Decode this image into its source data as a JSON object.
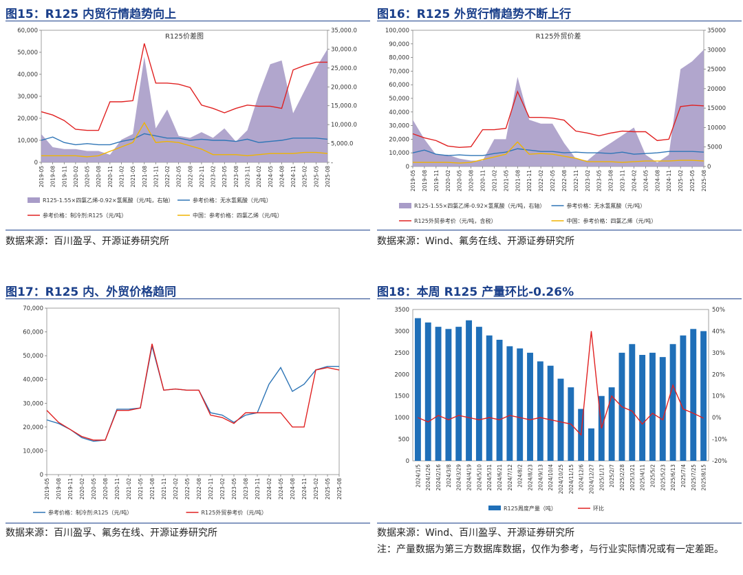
{
  "panels": [
    {
      "title": "图15：R125 内贸行情趋势向上",
      "source": "数据来源：百川盈孚、开源证券研究所",
      "chart_data": {
        "type": "area",
        "title": "R125价差图",
        "x": [
          "2019-05",
          "2019-08",
          "2019-11",
          "2020-02",
          "2020-05",
          "2020-08",
          "2020-11",
          "2021-02",
          "2021-05",
          "2021-08",
          "2021-11",
          "2022-02",
          "2022-05",
          "2022-08",
          "2022-11",
          "2023-02",
          "2023-05",
          "2023-08",
          "2023-11",
          "2024-02",
          "2024-05",
          "2024-08",
          "2024-11",
          "2025-02",
          "2025-05",
          "2025-08"
        ],
        "ylim_left": [
          0,
          60000
        ],
        "ylim_right": [
          0,
          35000
        ],
        "yticks_left": [
          "0",
          "10,000",
          "20,000",
          "30,000",
          "40,000",
          "50,000",
          "60,000"
        ],
        "yticks_right": [
          "-",
          "5,000.0",
          "10,000.0",
          "15,000.0",
          "20,000.0",
          "25,000.0",
          "30,000.0",
          "35,000.0"
        ],
        "series": [
          {
            "name": "R125-1.55×四氯乙烯-0.92×氢氟酸（元/吨，右轴）",
            "type": "area",
            "color": "#a89cc8",
            "axis": "right",
            "values": [
              7500,
              4000,
              3500,
              3500,
              3000,
              3000,
              2000,
              6000,
              7500,
              28000,
              9000,
              14000,
              7000,
              6500,
              8000,
              6500,
              9000,
              5500,
              8500,
              18000,
              26000,
              27000,
              13000,
              19000,
              25000,
              30000
            ]
          },
          {
            "name": "参考价格：无水氢氟酸（元/吨）",
            "type": "line",
            "color": "#2e75b6",
            "axis": "left",
            "values": [
              10000,
              11500,
              9000,
              8000,
              8500,
              8000,
              8000,
              9500,
              10500,
              13000,
              12000,
              11000,
              11000,
              10000,
              10500,
              10000,
              10000,
              9500,
              10500,
              9000,
              9500,
              10000,
              11000,
              11000,
              11000,
              10500
            ]
          },
          {
            "name": "参考价格：制冷剂:R125（元/吨）",
            "type": "line",
            "color": "#e02020",
            "axis": "left",
            "values": [
              23000,
              21500,
              19000,
              15000,
              14500,
              14500,
              27500,
              27500,
              28000,
              54000,
              36000,
              36000,
              35500,
              34000,
              26000,
              24500,
              22500,
              24500,
              26000,
              25500,
              25500,
              24500,
              42000,
              44000,
              45500,
              45500
            ]
          },
          {
            "name": "中国：参考价格：四氯乙烯（元/吨）",
            "type": "line",
            "color": "#f0b400",
            "axis": "left",
            "values": [
              3000,
              3000,
              3000,
              3000,
              2500,
              3000,
              5000,
              7000,
              9000,
              18000,
              9000,
              9500,
              9000,
              7500,
              6000,
              3500,
              3500,
              3500,
              3000,
              3500,
              4000,
              4000,
              4000,
              4500,
              4500,
              4000
            ]
          }
        ]
      }
    },
    {
      "title": "图16：R125 外贸行情趋势不断上行",
      "source": "数据来源：Wind、氟务在线、开源证券研究所",
      "chart_data": {
        "type": "area",
        "title": "R125外贸价差",
        "x": [
          "2019-05",
          "2019-08",
          "2019-11",
          "2020-02",
          "2020-05",
          "2020-08",
          "2020-11",
          "2021-02",
          "2021-05",
          "2021-08",
          "2021-11",
          "2022-02",
          "2022-05",
          "2022-08",
          "2022-11",
          "2023-02",
          "2023-05",
          "2023-08",
          "2023-11",
          "2024-02",
          "2024-05",
          "2024-08",
          "2024-11",
          "2025-02",
          "2025-05",
          "2025-08"
        ],
        "ylim_left": [
          0,
          100000
        ],
        "ylim_right": [
          0,
          35000
        ],
        "yticks_left": [
          "0",
          "10,000",
          "20,000",
          "30,000",
          "40,000",
          "50,000",
          "60,000",
          "70,000",
          "80,000",
          "90,000",
          "100,000"
        ],
        "yticks_right": [
          "0",
          "5000",
          "10000",
          "15000",
          "20000",
          "25000",
          "30000",
          "35000"
        ],
        "series": [
          {
            "name": "R125-1.55×四氯乙烯-0.92×氢氟酸（元/吨，右轴）",
            "type": "area",
            "color": "#a89cc8",
            "axis": "right",
            "values": [
              12000,
              7000,
              3000,
              3000,
              2000,
              1500,
              1500,
              7000,
              7000,
              23000,
              12000,
              11000,
              11000,
              6000,
              2000,
              1500,
              4000,
              6000,
              8000,
              10000,
              3000,
              1000,
              3000,
              25000,
              27000,
              30000
            ]
          },
          {
            "name": "参考价格：无水氢氟酸（元/吨）",
            "type": "line",
            "color": "#2e75b6",
            "axis": "left",
            "values": [
              10000,
              12000,
              9000,
              8000,
              8500,
              8000,
              8000,
              9500,
              10500,
              13000,
              12000,
              11000,
              11000,
              10000,
              10500,
              10000,
              10000,
              9500,
              10500,
              9000,
              9500,
              10000,
              11000,
              11000,
              11000,
              10500
            ]
          },
          {
            "name": "R125外贸参考价（元/吨，含税）",
            "type": "line",
            "color": "#e02020",
            "axis": "left",
            "values": [
              24000,
              21000,
              19000,
              15000,
              14000,
              14500,
              27000,
              27000,
              28000,
              55000,
              36000,
              36000,
              35500,
              34000,
              26000,
              24500,
              22500,
              24500,
              26000,
              25500,
              25500,
              19000,
              20000,
              44000,
              45000,
              44500
            ]
          },
          {
            "name": "中国：参考价格：四氯乙烯（元/吨）",
            "type": "line",
            "color": "#f0b400",
            "axis": "left",
            "values": [
              3000,
              3000,
              3000,
              3000,
              2500,
              3000,
              5000,
              7000,
              9000,
              18000,
              9000,
              9500,
              9000,
              7500,
              6000,
              3500,
              3500,
              3500,
              3000,
              3500,
              4000,
              4000,
              4000,
              4500,
              4500,
              4000
            ]
          }
        ]
      }
    },
    {
      "title": "图17：R125 内、外贸价格趋同",
      "source": "数据来源：百川盈孚、氟务在线、开源证券研究所",
      "chart_data": {
        "type": "line",
        "x": [
          "2019-05",
          "2019-08",
          "2019-11",
          "2020-02",
          "2020-05",
          "2020-08",
          "2020-11",
          "2021-02",
          "2021-05",
          "2021-08",
          "2021-11",
          "2022-02",
          "2022-05",
          "2022-08",
          "2022-11",
          "2023-02",
          "2023-05",
          "2023-08",
          "2023-11",
          "2024-02",
          "2024-05",
          "2024-08",
          "2024-11",
          "2025-02",
          "2025-05",
          "2025-08"
        ],
        "ylim": [
          0,
          70000
        ],
        "yticks": [
          "0",
          "10,000",
          "20,000",
          "30,000",
          "40,000",
          "50,000",
          "60,000",
          "70,000"
        ],
        "series": [
          {
            "name": "参考价格：制冷剂:R125（元/吨）",
            "color": "#2e75b6",
            "values": [
              23000,
              21500,
              19000,
              15500,
              14000,
              14500,
              27500,
              27500,
              28000,
              54000,
              35500,
              36000,
              35500,
              35500,
              26000,
              25000,
              22000,
              25000,
              26000,
              38000,
              45000,
              35000,
              38000,
              44000,
              45500,
              45500
            ]
          },
          {
            "name": "R125外贸参考价（元/吨）",
            "color": "#e02020",
            "values": [
              27000,
              22000,
              19000,
              16000,
              14500,
              14500,
              27000,
              27000,
              28000,
              55000,
              35500,
              36000,
              35500,
              35500,
              25000,
              24000,
              21500,
              26000,
              26000,
              26000,
              26000,
              20000,
              20000,
              44000,
              45000,
              44000
            ]
          }
        ]
      }
    },
    {
      "title": "图18：本周 R125 产量环比-0.26%",
      "source": "数据来源：Wind、百川盈孚、开源证券研究所",
      "note": "注：产量数据为第三方数据库数据，仅作为参考，与行业实际情况或有一定差距。",
      "chart_data": {
        "type": "bar",
        "x": [
          "2024/1/5",
          "2024/1/26",
          "2024/2/16",
          "2024/3/8",
          "2024/3/29",
          "2024/4/19",
          "2024/5/10",
          "2024/5/31",
          "2024/6/21",
          "2024/7/12",
          "2024/8/2",
          "2024/8/23",
          "2024/9/13",
          "2024/10/4",
          "2024/10/25",
          "2024/11/15",
          "2024/12/6",
          "2024/12/27",
          "2025/1/17",
          "2025/2/7",
          "2025/2/28",
          "2025/3/21",
          "2025/4/11",
          "2025/5/2",
          "2025/5/23",
          "2025/6/13",
          "2025/7/4",
          "2025/7/25",
          "2025/8/15"
        ],
        "ylim_left": [
          0,
          3500
        ],
        "ylim_right": [
          -20,
          50
        ],
        "yticks_left": [
          "0",
          "500",
          "1000",
          "1500",
          "2000",
          "2500",
          "3000",
          "3500"
        ],
        "yticks_right": [
          "-20%",
          "-10%",
          "0%",
          "10%",
          "20%",
          "30%",
          "40%",
          "50%"
        ],
        "series": [
          {
            "name": "R125周度产量（吨）",
            "type": "bar",
            "color": "#1f6fb8",
            "axis": "left",
            "values": [
              3300,
              3200,
              3100,
              3050,
              3100,
              3250,
              3100,
              2900,
              2800,
              2650,
              2600,
              2500,
              2300,
              2200,
              1900,
              1700,
              1200,
              750,
              1500,
              1700,
              2500,
              2700,
              2450,
              2500,
              2400,
              2700,
              2900,
              3050,
              3000
            ]
          },
          {
            "name": "环比",
            "type": "line",
            "color": "#e02020",
            "axis": "right",
            "values": [
              0,
              -2,
              1,
              -1,
              1,
              0,
              -1,
              0,
              -1,
              1,
              0,
              -1,
              0,
              -1,
              -2,
              -3,
              -8,
              40,
              -5,
              10,
              5,
              3,
              -3,
              2,
              -1,
              15,
              4,
              2,
              -0.26
            ]
          }
        ]
      }
    }
  ]
}
